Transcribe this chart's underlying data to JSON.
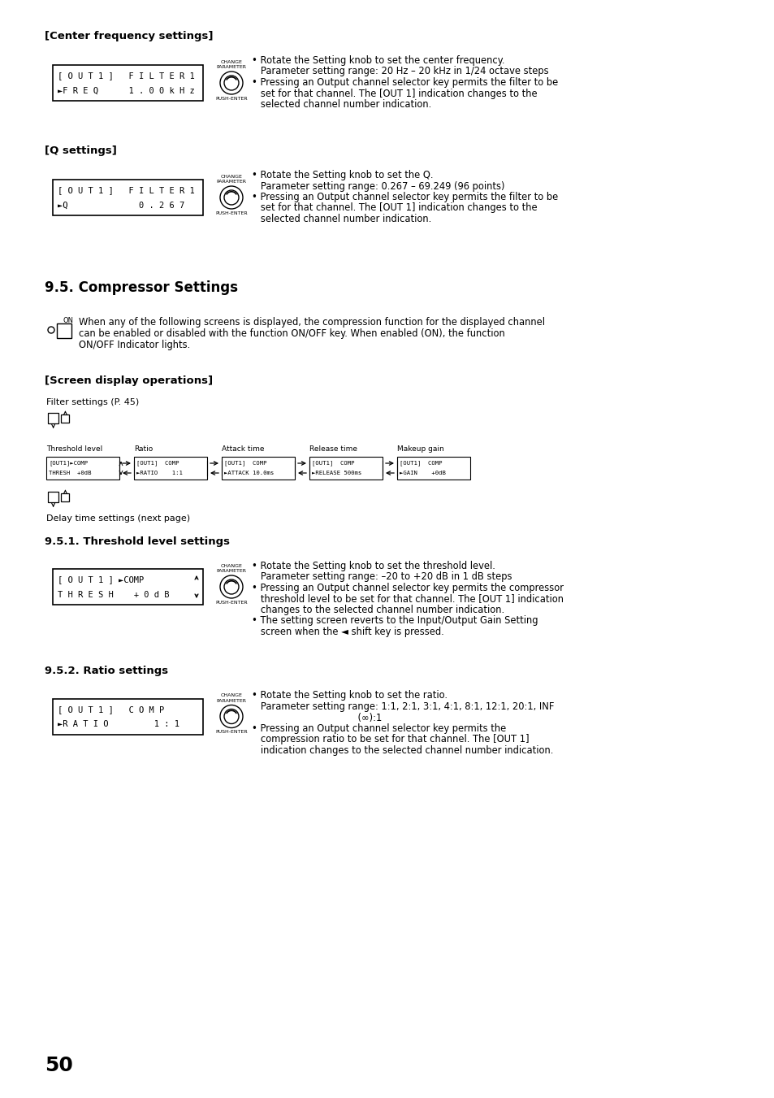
{
  "page_number": "50",
  "bg_color": "#ffffff",
  "section1_heading": "[Center frequency settings]",
  "section1_display_line1": "[ O U T 1 ]   F I L T E R 1",
  "section1_display_line2": "►F R E Q      1 . 0 0 k H z",
  "section1_bullets": [
    "• Rotate the Setting knob to set the center frequency.",
    "   Parameter setting range: 20 Hz – 20 kHz in 1/24 octave steps",
    "• Pressing an Output channel selector key permits the filter to be",
    "   set for that channel. The [OUT 1] indication changes to the",
    "   selected channel number indication."
  ],
  "section2_heading": "[Q settings]",
  "section2_display_line1": "[ O U T 1 ]   F I L T E R 1",
  "section2_display_line2": "►Q              0 . 2 6 7",
  "section2_bullets": [
    "• Rotate the Setting knob to set the Q.",
    "   Parameter setting range: 0.267 – 69.249 (96 points)",
    "• Pressing an Output channel selector key permits the filter to be",
    "   set for that channel. The [OUT 1] indication changes to the",
    "   selected channel number indication."
  ],
  "section3_heading": "9.5. Compressor Settings",
  "section3_on_text": "ON",
  "section3_body_lines": [
    "When any of the following screens is displayed, the compression function for the displayed channel",
    "can be enabled or disabled with the function ON/OFF key. When enabled (ON), the function",
    "ON/OFF Indicator lights."
  ],
  "screen_disp_heading": "[Screen display operations]",
  "filter_settings_label": "Filter settings (P. 45)",
  "delay_settings_label": "Delay time settings (next page)",
  "flow_labels": [
    "Threshold level",
    "Ratio",
    "Attack time",
    "Release time",
    "Makeup gain"
  ],
  "flow_line1": [
    "[OUT1]►COMP",
    "[OUT1]  COMP",
    "[OUT1]  COMP",
    "[OUT1]  COMP",
    "[OUT1]  COMP"
  ],
  "flow_line2": [
    "THRESH  +0dB",
    "►RATIO    1:1",
    "►ATTACK 10.0ms",
    "►RELEASE 500ms",
    "►GAIN    +0dB"
  ],
  "section_thresh_heading": "9.5.1. Threshold level settings",
  "section_thresh_line1": "[ O U T 1 ] ►COMP",
  "section_thresh_line2": "T H R E S H    + 0 d B",
  "section_thresh_bullets": [
    "• Rotate the Setting knob to set the threshold level.",
    "   Parameter setting range: –20 to +20 dB in 1 dB steps",
    "• Pressing an Output channel selector key permits the compressor",
    "   threshold level to be set for that channel. The [OUT 1] indication",
    "   changes to the selected channel number indication.",
    "• The setting screen reverts to the Input/Output Gain Setting",
    "   screen when the ◄ shift key is pressed."
  ],
  "section_ratio_heading": "9.5.2. Ratio settings",
  "section_ratio_line1": "[ O U T 1 ]   C O M P",
  "section_ratio_line2": "►R A T I O         1 : 1",
  "section_ratio_bullets": [
    "• Rotate the Setting knob to set the ratio.",
    "   Parameter setting range: 1:1, 2:1, 3:1, 4:1, 8:1, 12:1, 20:1, INF",
    "                                    (∞):1",
    "• Pressing an Output channel selector key permits the",
    "   compression ratio to be set for that channel. The [OUT 1]",
    "   indication changes to the selected channel number indication."
  ]
}
